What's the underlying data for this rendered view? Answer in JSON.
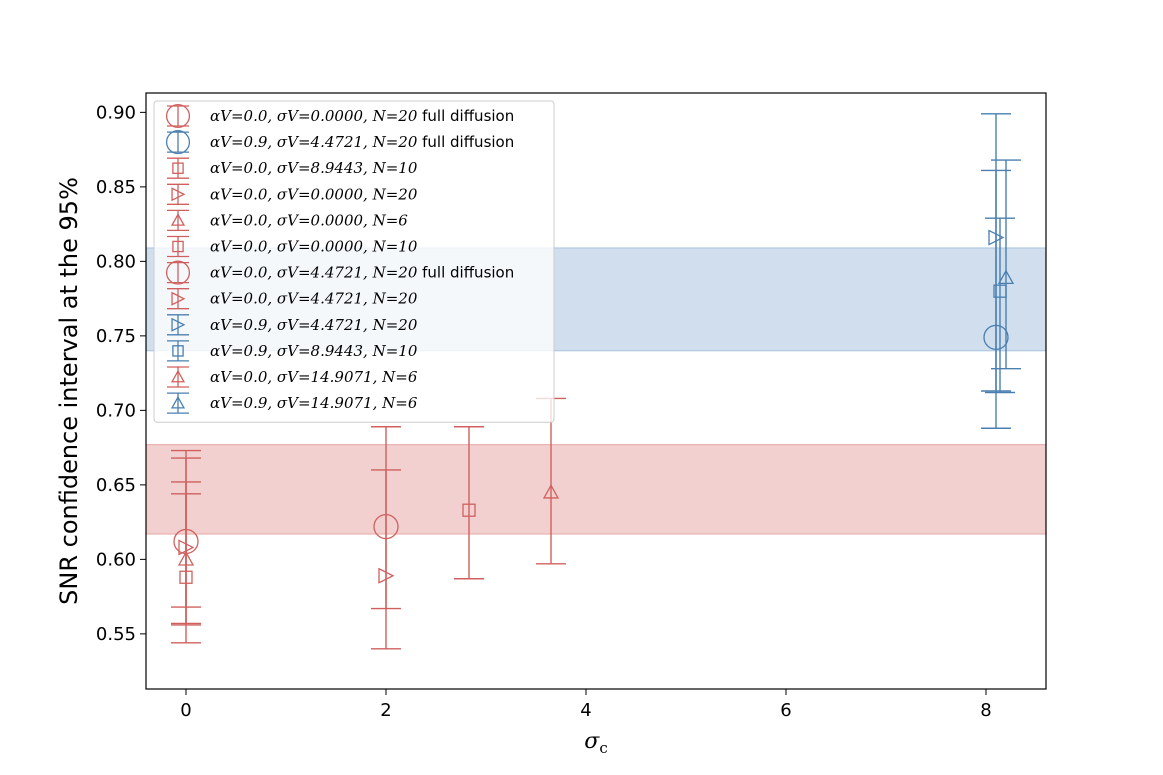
{
  "colors": {
    "red": "#d0605e",
    "blue": "#4a7fb0",
    "red_band": "#e8a9a8",
    "blue_band": "#a9c3de"
  },
  "chart_data": {
    "type": "scatter",
    "title": "",
    "xlabel": "σc",
    "ylabel": "SNR confidence interval at the 95%",
    "xlim": [
      -0.4,
      8.6
    ],
    "ylim": [
      0.513,
      0.913
    ],
    "xticks": [
      0,
      2,
      4,
      6,
      8
    ],
    "yticks": [
      0.55,
      0.6,
      0.65,
      0.7,
      0.75,
      0.8,
      0.85,
      0.9
    ],
    "xtick_labels": [
      "0",
      "2",
      "4",
      "6",
      "8"
    ],
    "ytick_labels": [
      "0.55",
      "0.60",
      "0.65",
      "0.70",
      "0.75",
      "0.80",
      "0.85",
      "0.90"
    ],
    "bands": [
      {
        "name": "alpha_V=0.9 band",
        "color": "blue",
        "ymin": 0.74,
        "ymax": 0.809
      },
      {
        "name": "alpha_V=0.0 band",
        "color": "red",
        "ymin": 0.617,
        "ymax": 0.677
      }
    ],
    "legend_position": "upper-left",
    "series": [
      {
        "label": "αV=0.0, σV=0.0000, N=20",
        "extra": " full diffusion",
        "color": "red",
        "marker": "circle",
        "points": [
          {
            "x": 0.0,
            "y": 0.612,
            "ylow": 0.556,
            "yhigh": 0.668
          }
        ]
      },
      {
        "label": "αV=0.9, σV=4.4721, N=20",
        "extra": " full diffusion",
        "color": "blue",
        "marker": "circle",
        "points": [
          {
            "x": 8.1,
            "y": 0.749,
            "ylow": 0.688,
            "yhigh": 0.899
          }
        ]
      },
      {
        "label": "αV=0.0, σV=8.9443, N=10",
        "extra": "",
        "color": "red",
        "marker": "square",
        "points": [
          {
            "x": 2.83,
            "y": 0.633,
            "ylow": 0.587,
            "yhigh": 0.689
          }
        ]
      },
      {
        "label": "αV=0.0, σV=0.0000, N=20",
        "extra": "",
        "color": "red",
        "marker": "triangle-right",
        "points": [
          {
            "x": 0.0,
            "y": 0.608,
            "ylow": 0.557,
            "yhigh": 0.652
          }
        ]
      },
      {
        "label": "αV=0.0, σV=0.0000, N=6",
        "extra": "",
        "color": "red",
        "marker": "triangle-up",
        "points": [
          {
            "x": 0.0,
            "y": 0.6,
            "ylow": 0.544,
            "yhigh": 0.673
          }
        ]
      },
      {
        "label": "αV=0.0, σV=0.0000, N=10",
        "extra": "",
        "color": "red",
        "marker": "square",
        "points": [
          {
            "x": 0.0,
            "y": 0.588,
            "ylow": 0.568,
            "yhigh": 0.644
          }
        ]
      },
      {
        "label": "αV=0.0, σV=4.4721, N=20",
        "extra": " full diffusion",
        "color": "red",
        "marker": "circle",
        "points": [
          {
            "x": 2.0,
            "y": 0.622,
            "ylow": 0.54,
            "yhigh": 0.689
          }
        ]
      },
      {
        "label": "αV=0.0, σV=4.4721, N=20",
        "extra": "",
        "color": "red",
        "marker": "triangle-right",
        "points": [
          {
            "x": 2.0,
            "y": 0.589,
            "ylow": 0.567,
            "yhigh": 0.66
          }
        ]
      },
      {
        "label": "αV=0.9, σV=4.4721, N=20",
        "extra": "",
        "color": "blue",
        "marker": "triangle-right",
        "points": [
          {
            "x": 8.1,
            "y": 0.816,
            "ylow": 0.713,
            "yhigh": 0.861
          }
        ]
      },
      {
        "label": "αV=0.9, σV=8.9443, N=10",
        "extra": "",
        "color": "blue",
        "marker": "square",
        "points": [
          {
            "x": 8.14,
            "y": 0.78,
            "ylow": 0.712,
            "yhigh": 0.829
          }
        ]
      },
      {
        "label": "αV=0.0, σV=14.9071, N=6",
        "extra": "",
        "color": "red",
        "marker": "triangle-up",
        "points": [
          {
            "x": 3.65,
            "y": 0.645,
            "ylow": 0.597,
            "yhigh": 0.708
          }
        ]
      },
      {
        "label": "αV=0.9, σV=14.9071, N=6",
        "extra": "",
        "color": "blue",
        "marker": "triangle-up",
        "points": [
          {
            "x": 8.2,
            "y": 0.789,
            "ylow": 0.728,
            "yhigh": 0.868
          }
        ]
      }
    ]
  }
}
